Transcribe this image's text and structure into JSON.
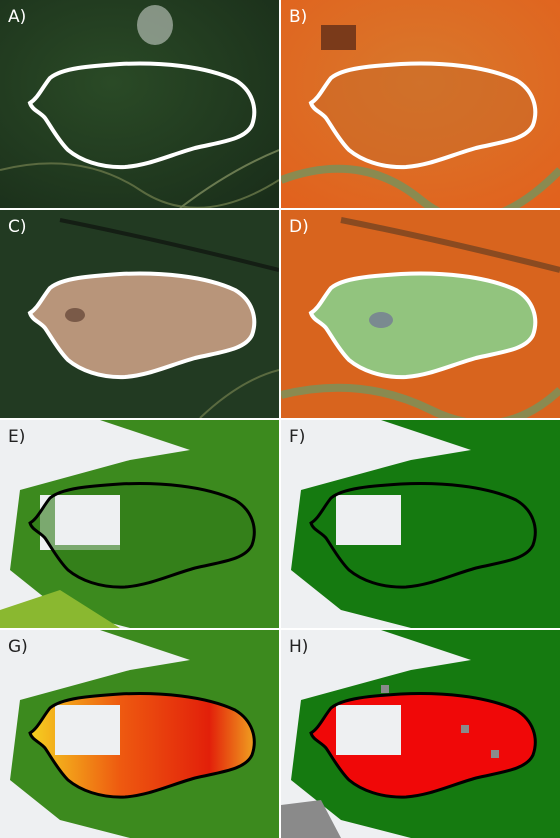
{
  "panels": [
    {
      "label": "A)"
    },
    {
      "label": "B)"
    },
    {
      "label": "C)"
    },
    {
      "label": "D)"
    },
    {
      "label": "E)"
    },
    {
      "label": "F)"
    },
    {
      "label": "G)"
    },
    {
      "label": "H)"
    }
  ]
}
